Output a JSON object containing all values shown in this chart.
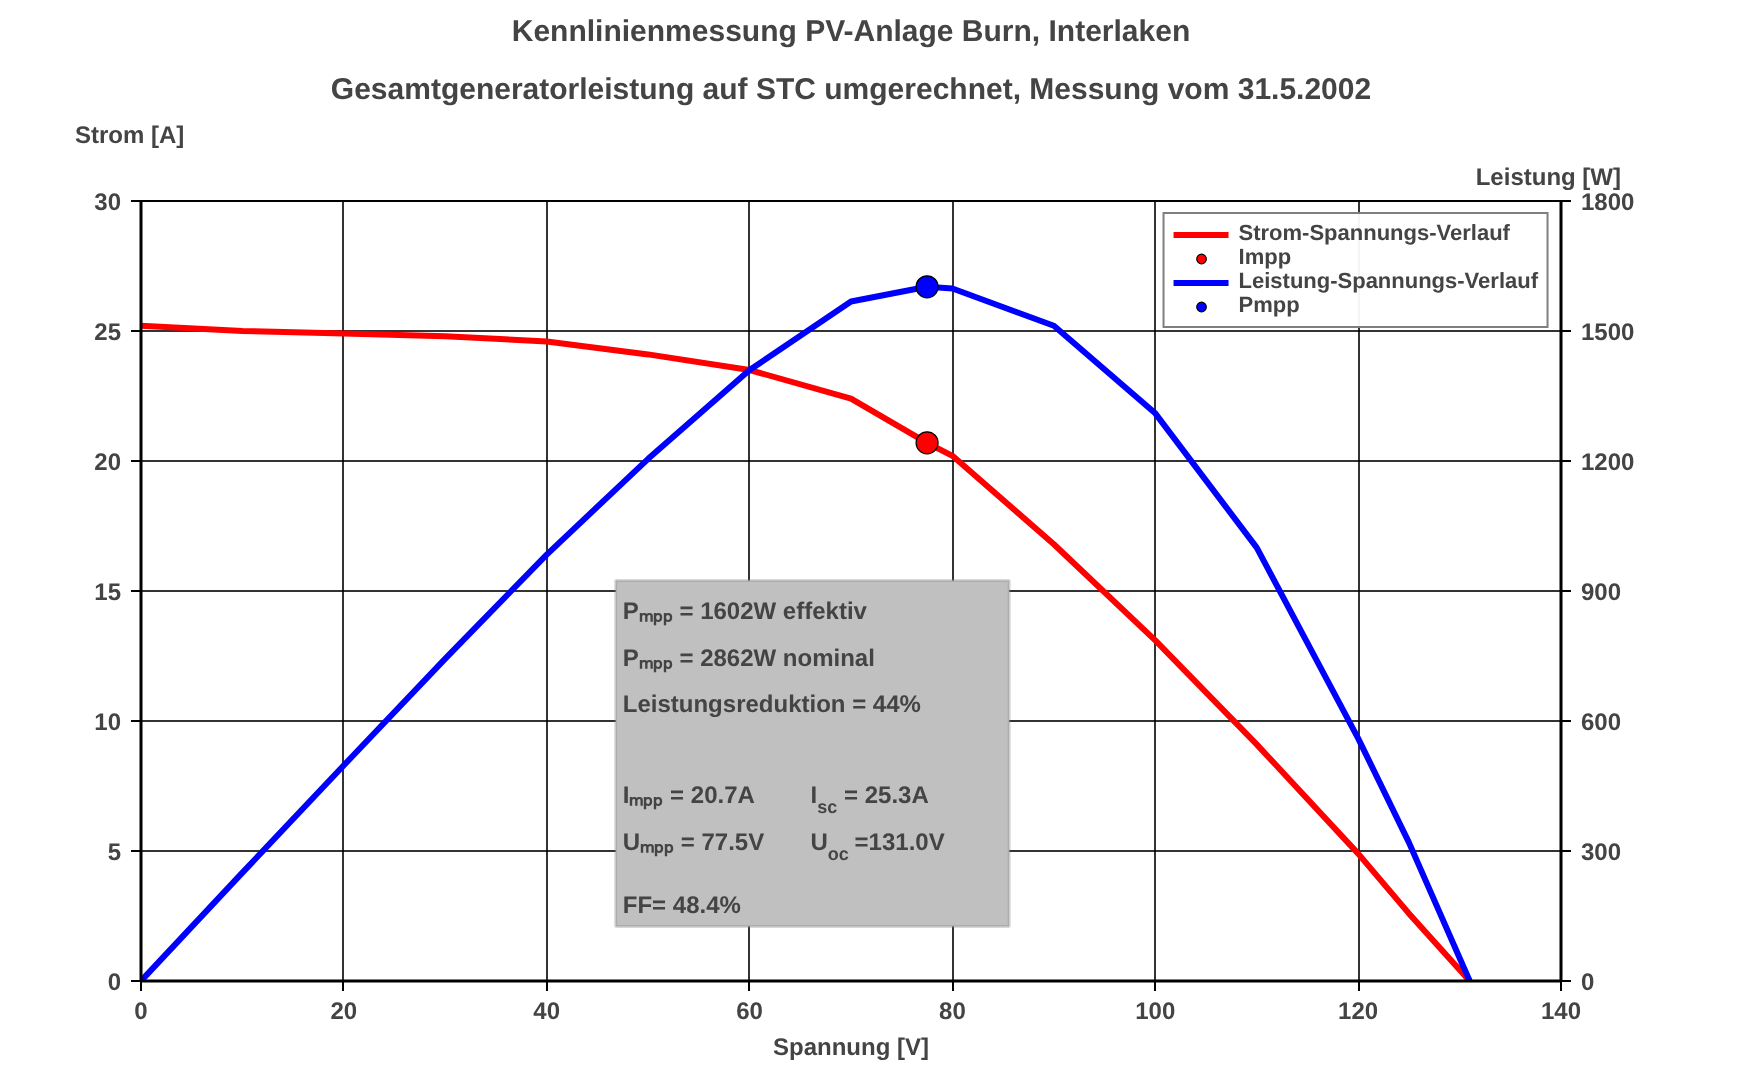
{
  "chart_data": {
    "type": "line",
    "title": "Kennlinienmessung PV-Anlage Burn, Interlaken",
    "subtitle": "Gesamtgeneratorleistung auf STC umgerechnet, Messung vom 31.5.2002",
    "xlabel": "Spannung [V]",
    "ylabel": "Strom [A]",
    "y2label": "Leistung [W]",
    "x": [
      0,
      10,
      20,
      30,
      40,
      50,
      60,
      70,
      77.5,
      80,
      90,
      100,
      110,
      120,
      125,
      131
    ],
    "series": [
      {
        "name": "Strom-Spannungs-Verlauf",
        "color": "#ff0000",
        "marker": "none",
        "values": [
          25.2,
          25.0,
          24.9,
          24.8,
          24.6,
          24.1,
          23.5,
          22.4,
          20.7,
          20.2,
          16.8,
          13.1,
          9.1,
          4.9,
          2.6,
          0
        ]
      },
      {
        "type": "scatter",
        "name": "Impp",
        "color": "#ff0000",
        "x": [
          77.5
        ],
        "values": [
          20.7
        ]
      },
      {
        "name": "Leistung-Spannungs-Verlauf",
        "color": "#0000ff",
        "marker": "none",
        "axis": "y2",
        "values": [
          0,
          250,
          498,
          744,
          984,
          1205,
          1410,
          1568,
          1602,
          1598,
          1512,
          1310,
          1000,
          560,
          320,
          0
        ]
      },
      {
        "type": "scatter",
        "name": "Pmpp",
        "color": "#0000ff",
        "axis": "y2",
        "x": [
          77.5
        ],
        "values": [
          1602
        ]
      }
    ],
    "xlim": [
      0,
      140
    ],
    "xticks": [
      0,
      20,
      40,
      60,
      80,
      100,
      120,
      140
    ],
    "ylim": [
      0,
      30
    ],
    "yticks": [
      0,
      5,
      10,
      15,
      20,
      25,
      30
    ],
    "y2lim": [
      0,
      1800
    ],
    "y2ticks": [
      0,
      300,
      600,
      900,
      1200,
      1500,
      1800
    ],
    "grid": true,
    "legend": "top right",
    "line_style": "solid",
    "annotations": [
      "Pₘₚₚ = 1602W effektiv",
      "Pₘₚₚ = 2862W nominal",
      "Leistungsreduktion = 44%",
      "Iₘₚₚ = 20.7A",
      "I$_{sc}$ = 25.3A",
      "Uₘₚₚ = 77.5V",
      "U$_{oc}$ =131.0V",
      "FF= 48.4%"
    ]
  }
}
